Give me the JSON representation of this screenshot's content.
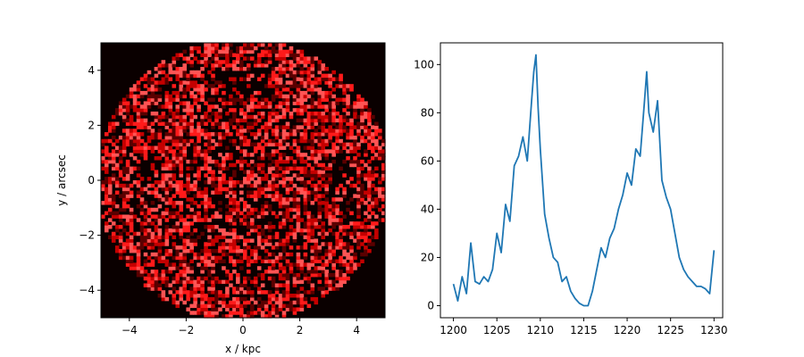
{
  "chart_data": [
    {
      "type": "heatmap",
      "title": "",
      "xlabel": "x / kpc",
      "ylabel": "y / arcsec",
      "xlim": [
        -5,
        5
      ],
      "ylim": [
        -5,
        5
      ],
      "xticks": [
        -4,
        -2,
        0,
        2,
        4
      ],
      "yticks": [
        -4,
        -2,
        0,
        2,
        4
      ],
      "colormap": [
        "#0a0000",
        "#5a0000",
        "#c40000",
        "#ff1a1a",
        "#ff5555"
      ],
      "background_color": "#0a0000",
      "grid": false
    },
    {
      "type": "line",
      "title": "",
      "xlabel": "",
      "ylabel": "",
      "xlim": [
        1198.5,
        1231
      ],
      "ylim": [
        -5,
        109
      ],
      "xticks": [
        1200,
        1205,
        1210,
        1215,
        1220,
        1225,
        1230
      ],
      "yticks": [
        0,
        20,
        40,
        60,
        80,
        100
      ],
      "grid": false,
      "color": "#1f77b4",
      "series": [
        {
          "name": "",
          "x": [
            1200,
            1200.5,
            1201,
            1201.5,
            1202,
            1202.5,
            1203,
            1203.5,
            1204,
            1204.5,
            1205,
            1205.5,
            1206,
            1206.5,
            1207,
            1207.5,
            1208,
            1208.5,
            1209,
            1209.25,
            1209.5,
            1209.75,
            1210,
            1210.5,
            1211,
            1211.5,
            1212,
            1212.5,
            1213,
            1213.5,
            1214,
            1214.5,
            1215,
            1215.5,
            1216,
            1216.5,
            1217,
            1217.5,
            1218,
            1218.5,
            1219,
            1219.5,
            1220,
            1220.5,
            1221,
            1221.5,
            1222,
            1222.25,
            1222.5,
            1223,
            1223.5,
            1224,
            1224.5,
            1225,
            1225.5,
            1226,
            1226.5,
            1227,
            1227.5,
            1228,
            1228.5,
            1229,
            1229.5,
            1230
          ],
          "y": [
            9,
            2,
            12,
            5,
            26,
            10,
            9,
            12,
            10,
            15,
            30,
            22,
            42,
            35,
            58,
            62,
            70,
            60,
            85,
            97,
            104,
            82,
            65,
            38,
            28,
            20,
            18,
            10,
            12,
            6,
            3,
            1,
            0,
            0,
            6,
            15,
            24,
            20,
            28,
            32,
            40,
            46,
            55,
            50,
            65,
            62,
            85,
            97,
            80,
            72,
            85,
            52,
            45,
            40,
            30,
            20,
            15,
            12,
            10,
            8,
            8,
            7,
            5,
            23
          ]
        }
      ]
    }
  ]
}
